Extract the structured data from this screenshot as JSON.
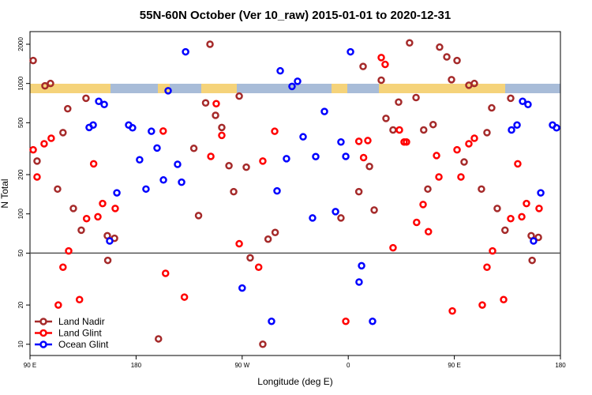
{
  "chart_data": {
    "type": "scatter",
    "title": "55N-60N October (Ver 10_raw)   2015-01-01 to 2020-12-31",
    "x_label": "Longitude (deg E)",
    "y_label": "N Total",
    "log_y": true,
    "legend": "lower left",
    "xlim": [
      90,
      540
    ],
    "ylim": [
      8.2,
      2500
    ],
    "xticks": [
      {
        "value": 90,
        "label": "90 E"
      },
      {
        "value": 180,
        "label": "180"
      },
      {
        "value": 270,
        "label": "90 W"
      },
      {
        "value": 360,
        "label": "0"
      },
      {
        "value": 450,
        "label": "90 E"
      },
      {
        "value": 540,
        "label": "180"
      }
    ],
    "yticks": [
      10,
      20,
      50,
      100,
      200,
      500,
      1000,
      2000
    ],
    "hline": 50,
    "series": [
      {
        "name": "Land Nadir",
        "color": "#a52a2a",
        "x": [
          92.7,
          96,
          102.7,
          107.4,
          113.4,
          118,
          122,
          126.8,
          133.5,
          137.5,
          156,
          155.6,
          161.7,
          199,
          229,
          233,
          239,
          242.7,
          247.4,
          252.7,
          258.8,
          262.8,
          267.5,
          273.5,
          276.8,
          287.5,
          292,
          298,
          353.8,
          369,
          372.6,
          378,
          382,
          388,
          392,
          398,
          402.7,
          412,
          417.5,
          424,
          427.5,
          432,
          437.5,
          443.6,
          447.6,
          452.3,
          458.3,
          462.3,
          467,
          473,
          477.7,
          481.7,
          486.4,
          493,
          497.8,
          516,
          515.2,
          521.3
        ],
        "values": [
          1500,
          254,
          960,
          1000,
          155,
          420,
          640,
          110,
          75,
          770,
          44,
          68,
          65,
          11,
          318,
          97,
          710,
          2000,
          570,
          460,
          234,
          148,
          800,
          228,
          46,
          10,
          64,
          72,
          93,
          148,
          1350,
          231,
          107,
          1060,
          540,
          440,
          720,
          2050,
          780,
          440,
          155,
          484,
          1900,
          1600,
          1070,
          1500,
          250,
          970,
          1000,
          155,
          420,
          650,
          110,
          75,
          770,
          44,
          68,
          66
        ]
      },
      {
        "name": "Land Glint",
        "color": "#ff0000",
        "x": [
          92.7,
          96,
          102,
          108,
          114,
          118,
          122.8,
          132,
          138,
          144,
          147.6,
          151.6,
          162.3,
          203,
          205,
          221,
          243.4,
          248,
          252.7,
          267.5,
          284,
          287.5,
          297.6,
          357.9,
          369,
          373,
          376.6,
          388,
          391.3,
          398,
          403.4,
          407.4,
          409.4,
          418,
          423.5,
          428,
          434.9,
          436.9,
          448.3,
          452.3,
          455.6,
          462.3,
          467,
          473.7,
          477.7,
          482.4,
          491.8,
          497.8,
          503.8,
          507.2,
          511.2,
          521.9
        ],
        "values": [
          310,
          192,
          345,
          380,
          20,
          39,
          52,
          22,
          92,
          242,
          95,
          120,
          110,
          432,
          35,
          23,
          276,
          700,
          400,
          59,
          39,
          254,
          430,
          15,
          360,
          270,
          365,
          1580,
          1400,
          55,
          440,
          356,
          356,
          86,
          118,
          73,
          280,
          192,
          18,
          310,
          192,
          345,
          380,
          20,
          39,
          52,
          22,
          92,
          242,
          95,
          120,
          110
        ]
      },
      {
        "name": "Ocean Glint",
        "color": "#0000ff",
        "x": [
          140.2,
          143.6,
          148.3,
          153,
          157.6,
          163.7,
          173.7,
          177,
          183,
          188.4,
          193,
          197.8,
          203.2,
          207.2,
          215.2,
          218.6,
          222,
          270,
          294.9,
          299.6,
          302.3,
          307.6,
          312.3,
          317,
          321.7,
          329.7,
          332.4,
          339.8,
          349.2,
          353.8,
          357.9,
          361.9,
          369.2,
          371.3,
          380.6,
          498.5,
          503.2,
          507.9,
          512.5,
          517.2,
          523.3,
          533.3,
          536.7
        ],
        "values": [
          460,
          480,
          730,
          690,
          62,
          145,
          480,
          457,
          260,
          155,
          430,
          320,
          182,
          880,
          240,
          175,
          1750,
          27,
          15,
          150,
          1250,
          265,
          950,
          1040,
          390,
          93,
          275,
          610,
          104,
          356,
          276,
          1750,
          30,
          40,
          15,
          440,
          480,
          730,
          690,
          62,
          145,
          480,
          457
        ]
      }
    ]
  }
}
